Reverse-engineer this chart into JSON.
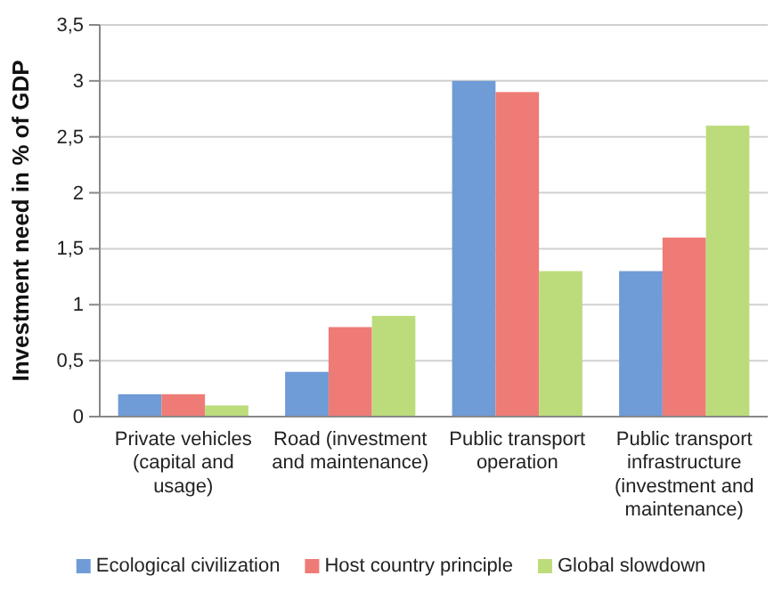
{
  "chart_data": {
    "type": "bar",
    "ylabel": "Investment need in % of GDP",
    "categories": [
      "Private vehicles (capital and usage)",
      "Road (investment and maintenance)",
      "Public transport operation",
      "Public transport infrastructure (investment and maintenance)"
    ],
    "series": [
      {
        "name": "Ecological civilization",
        "color": "#6f9bd6",
        "values": [
          0.2,
          0.4,
          3.0,
          1.3
        ]
      },
      {
        "name": "Host country principle",
        "color": "#ee7b76",
        "values": [
          0.2,
          0.8,
          2.9,
          1.6
        ]
      },
      {
        "name": "Global slowdown",
        "color": "#bcdc7c",
        "values": [
          0.1,
          0.9,
          1.3,
          2.6
        ]
      }
    ],
    "ylim": [
      0,
      3.5
    ],
    "yticks": [
      0,
      {
        "value": 0.5,
        "label": "0,5"
      },
      1,
      {
        "value": 1.5,
        "label": "1,5"
      },
      2,
      {
        "value": 2.5,
        "label": "2,5"
      },
      3,
      {
        "value": 3.5,
        "label": "3,5"
      }
    ],
    "grid": "y",
    "legend": "bottom"
  }
}
